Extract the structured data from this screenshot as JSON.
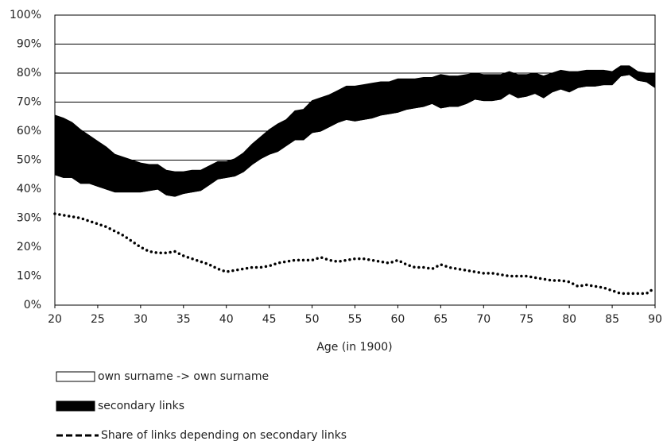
{
  "chart_data": {
    "type": "stacked_area",
    "x_label": "Age (in 1900)",
    "x": [
      20,
      21,
      22,
      23,
      24,
      25,
      26,
      27,
      28,
      29,
      30,
      31,
      32,
      33,
      34,
      35,
      36,
      37,
      38,
      39,
      40,
      41,
      42,
      43,
      44,
      45,
      46,
      47,
      48,
      49,
      50,
      51,
      52,
      53,
      54,
      55,
      56,
      57,
      58,
      59,
      60,
      61,
      62,
      63,
      64,
      65,
      66,
      67,
      68,
      69,
      70,
      71,
      72,
      73,
      74,
      75,
      76,
      77,
      78,
      79,
      80,
      81,
      82,
      83,
      84,
      85,
      86,
      87,
      88,
      89,
      90
    ],
    "series": [
      {
        "name": "own surname -> own surname",
        "color": "#ffffff",
        "type": "area",
        "values": [
          45,
          44,
          44,
          42,
          42,
          41,
          40,
          39,
          39,
          39,
          39,
          39.5,
          40,
          38,
          37.5,
          38.5,
          39,
          39.5,
          41.5,
          43.5,
          44,
          44.5,
          46,
          48.5,
          50.5,
          52,
          53,
          55,
          57,
          57,
          59.5,
          60,
          61.5,
          63,
          64,
          63.5,
          64,
          64.5,
          65.5,
          66,
          66.5,
          67.5,
          68,
          68.5,
          69.5,
          68,
          68.5,
          68.5,
          69.5,
          71,
          70.5,
          70.5,
          71,
          73,
          71.5,
          72,
          73,
          71.5,
          73.5,
          74.5,
          73.5,
          75,
          75.5,
          75.5,
          76,
          76,
          79,
          79.5,
          77.5,
          77,
          75
        ]
      },
      {
        "name": "secondary links",
        "color": "#000000",
        "type": "area",
        "values": [
          20.5,
          20.5,
          19,
          18.5,
          16.5,
          15.5,
          14.5,
          13,
          12,
          11,
          10,
          9,
          8.5,
          8.5,
          8.5,
          7.5,
          7.5,
          7,
          6.5,
          6,
          5.5,
          6,
          6.5,
          7,
          7.5,
          8.5,
          9.5,
          9,
          10,
          10.5,
          11,
          11.5,
          11,
          11,
          11.5,
          12,
          12,
          12,
          11.5,
          11,
          11.5,
          10.5,
          10,
          10,
          9,
          11.5,
          10.5,
          10.5,
          10,
          9,
          9,
          9,
          8.5,
          7.5,
          8,
          7.5,
          7,
          7.5,
          6.5,
          6.5,
          7,
          5.5,
          5.5,
          5.5,
          5,
          4.5,
          3.5,
          3,
          3,
          3,
          5
        ]
      },
      {
        "name": "Share of links depending on secondary links",
        "color": "#000000",
        "type": "line",
        "values": [
          31.5,
          31,
          30.5,
          30,
          29,
          28,
          27,
          25.5,
          24,
          22,
          20,
          18.5,
          18,
          18,
          18.5,
          17,
          16,
          15,
          14,
          12.5,
          11.5,
          12,
          12.5,
          13,
          13,
          13.5,
          14.5,
          15,
          15.5,
          15.5,
          15.5,
          16.5,
          15.5,
          15,
          15.5,
          16,
          16,
          15.5,
          15,
          14.5,
          15.5,
          14,
          13,
          13,
          12.5,
          14,
          13,
          12.5,
          12,
          11.5,
          11,
          11,
          10.5,
          10,
          10,
          10,
          9.5,
          9,
          8.5,
          8.5,
          8,
          6.5,
          7,
          6.5,
          6,
          5,
          4,
          4,
          4,
          4,
          6
        ]
      }
    ],
    "xlim": [
      20,
      90
    ],
    "xticks": [
      20,
      25,
      30,
      35,
      40,
      45,
      50,
      55,
      60,
      65,
      70,
      75,
      80,
      85,
      90
    ],
    "ylim": [
      0,
      100
    ],
    "yticks": [
      {
        "value": 0,
        "label": "0%"
      },
      {
        "value": 10,
        "label": "10%"
      },
      {
        "value": 20,
        "label": "20%"
      },
      {
        "value": 30,
        "label": "30%"
      },
      {
        "value": 40,
        "label": "40%"
      },
      {
        "value": 50,
        "label": "50%"
      },
      {
        "value": 60,
        "label": "60%"
      },
      {
        "value": 70,
        "label": "70%"
      },
      {
        "value": 80,
        "label": "80%"
      },
      {
        "value": 90,
        "label": "90%"
      },
      {
        "value": 100,
        "label": "100%"
      }
    ],
    "grid": true
  }
}
